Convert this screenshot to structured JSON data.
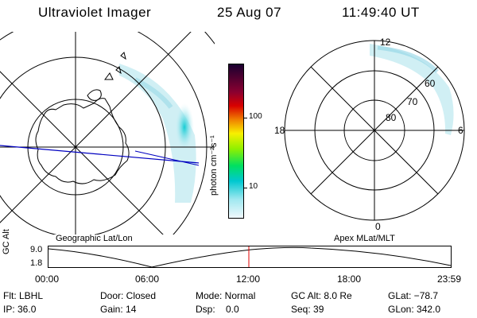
{
  "header": {
    "title": "Ultraviolet Imager",
    "date": "25 Aug 07",
    "time": "11:49:40 UT"
  },
  "colorbar": {
    "unit_text": "photon cm⁻²s⁻¹",
    "tick_labels": [
      "100",
      "10"
    ],
    "colors": [
      "#1a0030",
      "#8a0030",
      "#d80000",
      "#f08000",
      "#f8f000",
      "#90f000",
      "#00e060",
      "#00c8d0",
      "#a0e8f0",
      "#f0f8fc"
    ]
  },
  "geo_panel": {
    "caption": "Geographic Lat/Lon"
  },
  "mag_panel": {
    "caption": "Apex  MLat/MLT",
    "mlt_labels": {
      "top": "12",
      "left": "18",
      "right": "6",
      "bottom": "0"
    },
    "lat_labels": [
      "60",
      "70",
      "80"
    ]
  },
  "timeline": {
    "y_axis_label": "GC Alt",
    "y_max": "9.0",
    "y_min": "1.8",
    "x_labels": [
      "00:00",
      "06:00",
      "12:00",
      "18:00",
      "23:59"
    ],
    "current_marker_color": "#e00000"
  },
  "footer": {
    "filter": "Flt: LBHL",
    "ip": "IP: 36.0",
    "door": "Door: Closed",
    "gain": "Gain: 14",
    "mode": "Mode: Normal",
    "dsp": "Dsp:    0.0",
    "gc_alt": "GC Alt: 8.0 Re",
    "seq": "Seq: 39",
    "glat": "GLat: −78.7",
    "glon": "GLon: 342.0"
  }
}
